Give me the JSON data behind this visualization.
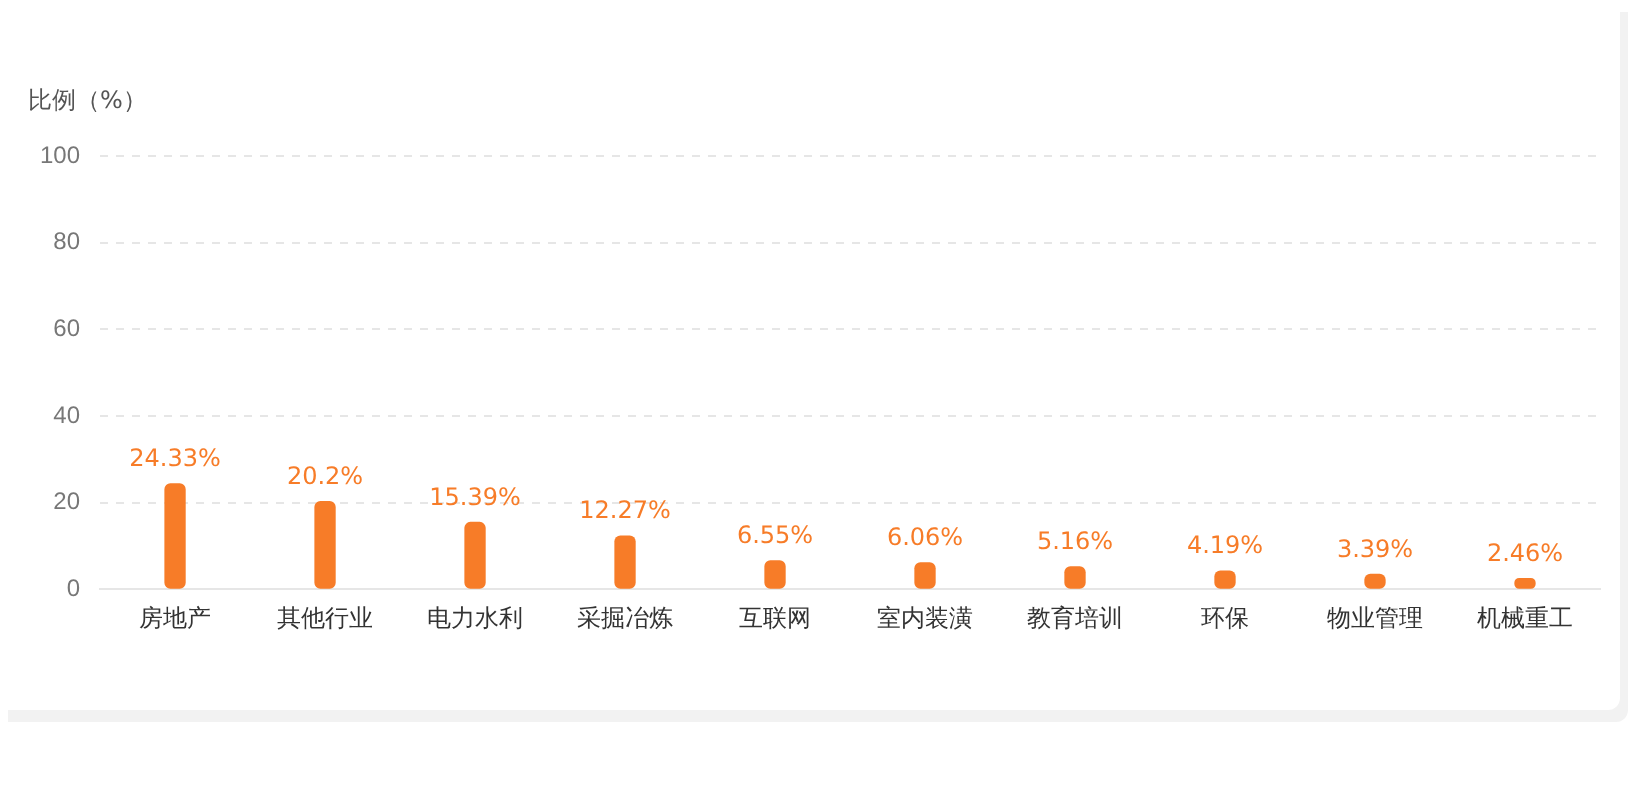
{
  "chart_data": {
    "type": "bar",
    "ylabel": "比例（%）",
    "categories": [
      "房地产",
      "其他行业",
      "电力水利",
      "采掘冶炼",
      "互联网",
      "室内装潢",
      "教育培训",
      "环保",
      "物业管理",
      "机械重工"
    ],
    "values": [
      24.33,
      20.2,
      15.39,
      12.27,
      6.55,
      6.06,
      5.16,
      4.19,
      3.39,
      2.46
    ],
    "value_labels": [
      "24.33%",
      "20.2%",
      "15.39%",
      "12.27%",
      "6.55%",
      "6.06%",
      "5.16%",
      "4.19%",
      "3.39%",
      "2.46%"
    ],
    "color": "#f77c28",
    "ylim": [
      0,
      100
    ],
    "yticks": [
      0,
      20,
      40,
      60,
      80,
      100
    ],
    "grid": "y",
    "legend": false
  }
}
